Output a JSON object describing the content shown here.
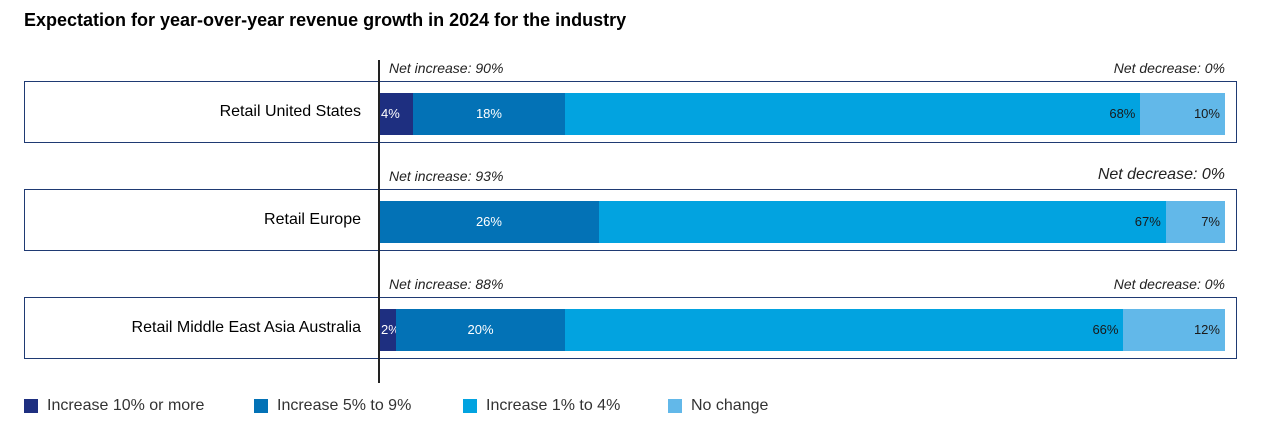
{
  "title": "Expectation for year-over-year revenue growth in 2024 for the industry",
  "chart_data": {
    "type": "bar",
    "orientation": "horizontal",
    "stacked": true,
    "title": "Expectation for year-over-year revenue growth in 2024 for the industry",
    "categories": [
      "Retail United States",
      "Retail Europe",
      "Retail Middle East Asia Australia"
    ],
    "series": [
      {
        "name": "Increase 10% or more",
        "color": "#1e2f80",
        "values": [
          4,
          0,
          2
        ],
        "labels": [
          "4%",
          "",
          "2%"
        ]
      },
      {
        "name": "Increase 5% to 9%",
        "color": "#0372b6",
        "values": [
          18,
          26,
          20
        ],
        "labels": [
          "18%",
          "26%",
          "20%"
        ]
      },
      {
        "name": "Increase 1% to 4%",
        "color": "#02a3e0",
        "values": [
          68,
          67,
          66
        ],
        "labels": [
          "68%",
          "67%",
          "66%"
        ]
      },
      {
        "name": "No change",
        "color": "#62b8e9",
        "values": [
          10,
          7,
          12
        ],
        "labels": [
          "10%",
          "7%",
          "12%"
        ]
      }
    ],
    "annotations": [
      {
        "net_increase": "Net increase: 90%",
        "net_decrease": "Net decrease: 0%"
      },
      {
        "net_increase": "Net increase: 93%",
        "net_decrease": "Net decrease: 0%"
      },
      {
        "net_increase": "Net increase: 88%",
        "net_decrease": "Net decrease: 0%"
      }
    ],
    "xlim": [
      0,
      100
    ],
    "legend_position": "bottom",
    "grid": false
  }
}
